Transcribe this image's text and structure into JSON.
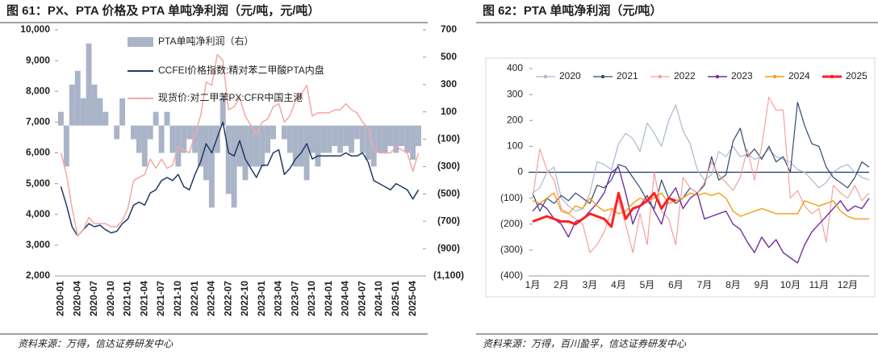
{
  "chart_data": [
    {
      "type": "combo",
      "title": "图 61：PX、PTA 价格及 PTA 单吨净利润（元/吨，元/吨）",
      "source": "资料来源：万得，信达证券研发中心",
      "categories": [
        "2020-01",
        null,
        null,
        "2020-04",
        null,
        null,
        "2020-07",
        null,
        null,
        "2020-10",
        null,
        null,
        "2021-01",
        null,
        null,
        "2021-04",
        null,
        null,
        "2021-07",
        null,
        null,
        "2021-10",
        null,
        null,
        "2022-01",
        null,
        null,
        "2022-04",
        null,
        null,
        "2022-07",
        null,
        null,
        "2022-10",
        null,
        null,
        "2023-01",
        null,
        null,
        "2023-04",
        null,
        null,
        "2023-07",
        null,
        null,
        "2023-10",
        null,
        null,
        "2024-01",
        null,
        null,
        "2024-04",
        null,
        null,
        "2024-07",
        null,
        null,
        "2024-10",
        null,
        null,
        "2025-01",
        null,
        null,
        "2025-04",
        null
      ],
      "ylim": [
        2000,
        10000
      ],
      "yticks": [
        {
          "value": 2000,
          "label": "2,000"
        },
        {
          "value": 3000,
          "label": "3,000"
        },
        {
          "value": 4000,
          "label": "4,000"
        },
        {
          "value": 5000,
          "label": "5,000"
        },
        {
          "value": 6000,
          "label": "6,000"
        },
        {
          "value": 7000,
          "label": "7,000"
        },
        {
          "value": 8000,
          "label": "8,000"
        },
        {
          "value": 9000,
          "label": "9,000"
        },
        {
          "value": 10000,
          "label": "10,000"
        }
      ],
      "y2lim": [
        -1100,
        700
      ],
      "y2ticks": [
        {
          "value": -1100,
          "label": "(1,100)"
        },
        {
          "value": -900,
          "label": "(900)"
        },
        {
          "value": -700,
          "label": "(700)"
        },
        {
          "value": -500,
          "label": "(500)"
        },
        {
          "value": -300,
          "label": "(300)"
        },
        {
          "value": -100,
          "label": "(100)"
        },
        100,
        300,
        500,
        700
      ],
      "series": [
        {
          "name": "PTA单吨净利润（右）",
          "type": "bar",
          "axis": "y2",
          "color": "#aab4c8",
          "values": [
            100,
            -300,
            300,
            400,
            200,
            600,
            300,
            200,
            100,
            0,
            -100,
            200,
            0,
            -100,
            -200,
            -300,
            -100,
            100,
            -200,
            100,
            -200,
            -300,
            -200,
            -100,
            -200,
            -300,
            -400,
            -600,
            -200,
            200,
            -500,
            -600,
            -300,
            -400,
            -300,
            -300,
            -300,
            -200,
            -100,
            0,
            -100,
            -200,
            -300,
            -300,
            -400,
            -200,
            -300,
            -200,
            -200,
            -150,
            -200,
            -150,
            -200,
            -100,
            -200,
            -250,
            -300,
            -200,
            -200,
            -150,
            -200,
            -150,
            -200,
            -250,
            -150
          ]
        },
        {
          "name": "CCFEI价格指数:精对苯二甲酸PTA内盘",
          "type": "line",
          "color": "#1f3864",
          "values": [
            4900,
            4300,
            3600,
            3300,
            3500,
            3700,
            3600,
            3650,
            3500,
            3400,
            3450,
            3700,
            3850,
            4300,
            4400,
            4300,
            4700,
            4800,
            5100,
            5200,
            5100,
            5300,
            4900,
            4800,
            5300,
            5700,
            6300,
            6000,
            6500,
            7000,
            6000,
            5900,
            6400,
            5800,
            5500,
            5200,
            5600,
            5600,
            6000,
            6100,
            5300,
            5500,
            5800,
            6000,
            6300,
            5800,
            5900,
            5900,
            5900,
            5900,
            5900,
            6000,
            5900,
            5900,
            6000,
            5700,
            5100,
            5000,
            4900,
            4800,
            5000,
            4900,
            4800,
            4500,
            4800
          ]
        },
        {
          "name": "现货价:对二甲苯PX:CFR中国主港",
          "type": "line",
          "color": "#f4a6a6",
          "values": [
            6000,
            5300,
            4200,
            3300,
            3500,
            3900,
            3700,
            3700,
            3700,
            3600,
            3600,
            3800,
            4200,
            5100,
            5200,
            5300,
            5800,
            5500,
            5800,
            5500,
            5600,
            6200,
            6100,
            6000,
            6600,
            7200,
            8300,
            8200,
            9200,
            9000,
            7400,
            7500,
            7800,
            7200,
            6900,
            6600,
            7000,
            7100,
            7500,
            7600,
            7000,
            7200,
            7700,
            7900,
            8200,
            7200,
            7300,
            7300,
            7300,
            7400,
            7400,
            7600,
            7400,
            7300,
            7000,
            6800,
            6100,
            6000,
            6000,
            6000,
            6200,
            6100,
            6000,
            5400,
            6000
          ]
        }
      ]
    },
    {
      "type": "line",
      "title": "图 62：PTA 单吨净利润（元/吨）",
      "source": "资料来源：万得，百川盈孚，信达证券研发中心",
      "categories": [
        "1月",
        null,
        null,
        null,
        "2月",
        null,
        null,
        null,
        "3月",
        null,
        null,
        null,
        "4月",
        null,
        null,
        null,
        "5月",
        null,
        null,
        null,
        "6月",
        null,
        null,
        null,
        "7月",
        null,
        null,
        null,
        "8月",
        null,
        null,
        null,
        "9月",
        null,
        null,
        null,
        "10月",
        null,
        null,
        null,
        "11月",
        null,
        null,
        null,
        "12月",
        null,
        null,
        null
      ],
      "ylim": [
        -400,
        400
      ],
      "yticks": [
        {
          "value": -400,
          "label": "(400)"
        },
        {
          "value": -300,
          "label": "(300)"
        },
        {
          "value": -200,
          "label": "(200)"
        },
        {
          "value": -100,
          "label": "(100)"
        },
        0,
        100,
        200,
        300,
        400
      ],
      "series": [
        {
          "name": "2020",
          "color": "#a9b8d0",
          "width": 1.2,
          "values": [
            -80,
            -60,
            0,
            20,
            -100,
            -130,
            -150,
            -140,
            -80,
            40,
            30,
            10,
            110,
            150,
            130,
            80,
            190,
            150,
            100,
            200,
            260,
            160,
            110,
            10,
            -30,
            -10,
            80,
            60,
            100,
            60,
            70,
            50,
            60,
            90,
            60,
            50,
            40,
            10,
            0,
            -30,
            -60,
            -40,
            0,
            20,
            30,
            0,
            -20,
            -30
          ]
        },
        {
          "name": "2021",
          "color": "#2f4a6f",
          "width": 1.2,
          "values": [
            -80,
            -150,
            -100,
            -120,
            -90,
            -110,
            -80,
            -100,
            -120,
            -50,
            -60,
            -30,
            30,
            20,
            -20,
            -60,
            -110,
            -140,
            -30,
            -100,
            -120,
            -100,
            -60,
            -80,
            -50,
            60,
            -30,
            -10,
            120,
            170,
            60,
            90,
            50,
            100,
            40,
            60,
            0,
            270,
            180,
            110,
            100,
            20,
            -20,
            -40,
            -60,
            -20,
            40,
            20
          ]
        },
        {
          "name": "2022",
          "color": "#f4a0a0",
          "width": 1.2,
          "values": [
            -100,
            90,
            10,
            -30,
            -140,
            -160,
            -180,
            -200,
            -310,
            -280,
            -230,
            -150,
            -110,
            -200,
            -310,
            -160,
            -280,
            0,
            -150,
            -180,
            -280,
            -20,
            -60,
            -80,
            -40,
            40,
            -10,
            -40,
            -70,
            -20,
            90,
            -30,
            100,
            290,
            240,
            240,
            -100,
            -70,
            -130,
            -160,
            -140,
            -270,
            -50,
            -80,
            -100,
            -50,
            -110,
            -80
          ]
        },
        {
          "name": "2023",
          "color": "#7030a0",
          "width": 1.4,
          "values": [
            -150,
            -120,
            -140,
            -180,
            -200,
            -250,
            -190,
            -180,
            -150,
            -120,
            -80,
            0,
            20,
            -80,
            -200,
            -130,
            -90,
            -150,
            -200,
            -100,
            -60,
            -140,
            -100,
            -80,
            -180,
            -170,
            -160,
            -150,
            -200,
            -220,
            -270,
            -310,
            -250,
            -290,
            -260,
            -310,
            -330,
            -350,
            -280,
            -230,
            -200,
            -170,
            -140,
            -110,
            -150,
            -130,
            -140,
            -100
          ]
        },
        {
          "name": "2024",
          "color": "#f39c12",
          "width": 1.4,
          "values": [
            -110,
            -120,
            -100,
            -80,
            -150,
            -160,
            -130,
            -140,
            -100,
            -130,
            -150,
            -140,
            -160,
            -150,
            -120,
            -100,
            -110,
            -100,
            -80,
            -120,
            -110,
            -100,
            -80,
            -90,
            -80,
            -90,
            -80,
            -100,
            -150,
            -170,
            -160,
            -150,
            -140,
            -150,
            -160,
            -160,
            -160,
            -160,
            -110,
            -120,
            -130,
            -120,
            -110,
            -150,
            -170,
            -180,
            -180,
            -180
          ]
        },
        {
          "name": "2025",
          "color": "#ff2020",
          "width": 3,
          "values": [
            -190,
            -180,
            -170,
            -180,
            -190,
            -190,
            -200,
            -180,
            -160,
            -170,
            -180,
            -210,
            -80,
            -180,
            -140,
            -130,
            -110,
            -80,
            -140,
            -100,
            -110,
            null,
            null,
            null,
            null,
            null,
            null,
            null,
            null,
            null,
            null,
            null,
            null,
            null,
            null,
            null,
            null,
            null,
            null,
            null,
            null,
            null,
            null,
            null,
            null,
            null,
            null,
            null
          ]
        }
      ]
    }
  ]
}
